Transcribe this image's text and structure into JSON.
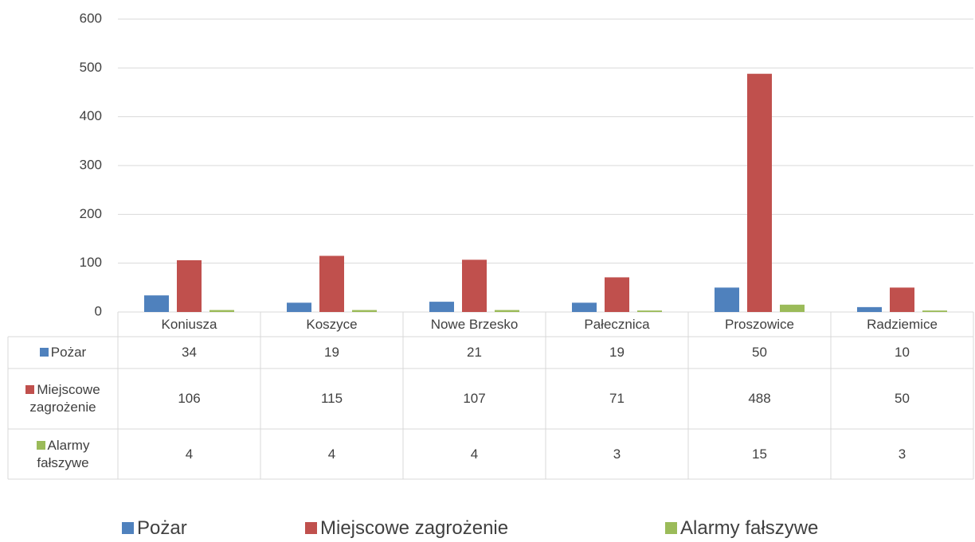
{
  "chart_data": {
    "type": "bar",
    "categories": [
      "Koniusza",
      "Koszyce",
      "Nowe Brzesko",
      "Pałecznica",
      "Proszowice",
      "Radziemice"
    ],
    "series": [
      {
        "name": "Pożar",
        "color": "#4f81bd",
        "values": [
          34,
          19,
          21,
          19,
          50,
          10
        ]
      },
      {
        "name": "Miejscowe zagrożenie",
        "color": "#c0504d",
        "values": [
          106,
          115,
          107,
          71,
          488,
          50
        ]
      },
      {
        "name": "Alarmy fałszywe",
        "color": "#9bbb59",
        "values": [
          4,
          4,
          4,
          3,
          15,
          3
        ]
      }
    ],
    "ylim": [
      0,
      600
    ],
    "yticks": [
      0,
      100,
      200,
      300,
      400,
      500,
      600
    ],
    "grid": true,
    "legend": "bottom",
    "data_table": true
  }
}
